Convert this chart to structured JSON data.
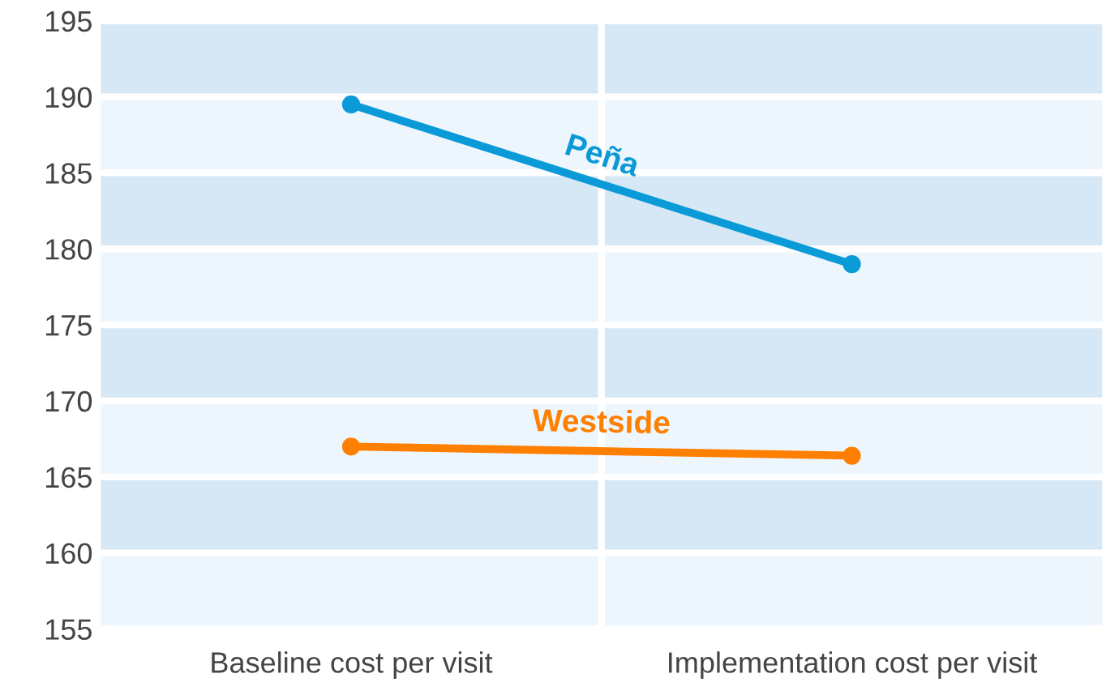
{
  "chart_data": {
    "type": "line",
    "categories": [
      "Baseline cost per visit",
      "Implementation cost per visit"
    ],
    "series": [
      {
        "name": "Peña",
        "color": "#0a9ad8",
        "values": [
          189.5,
          179.0
        ]
      },
      {
        "name": "Westside",
        "color": "#ff7f00",
        "values": [
          167.0,
          166.4
        ]
      }
    ],
    "ylim": [
      155,
      195
    ],
    "yticks": [
      155,
      160,
      165,
      170,
      175,
      180,
      185,
      190,
      195
    ],
    "grid": true,
    "marker": "circle",
    "line_style": "solid",
    "legend": false,
    "bands": [
      {
        "axis": "y",
        "from": 160,
        "to": 165,
        "color": "#d6e8f5"
      },
      {
        "axis": "y",
        "from": 170,
        "to": 175,
        "color": "#d6e8f5"
      },
      {
        "axis": "y",
        "from": 180,
        "to": 185,
        "color": "#d6e8f5"
      },
      {
        "axis": "y",
        "from": 190,
        "to": 195,
        "color": "#d6e8f5"
      }
    ]
  }
}
